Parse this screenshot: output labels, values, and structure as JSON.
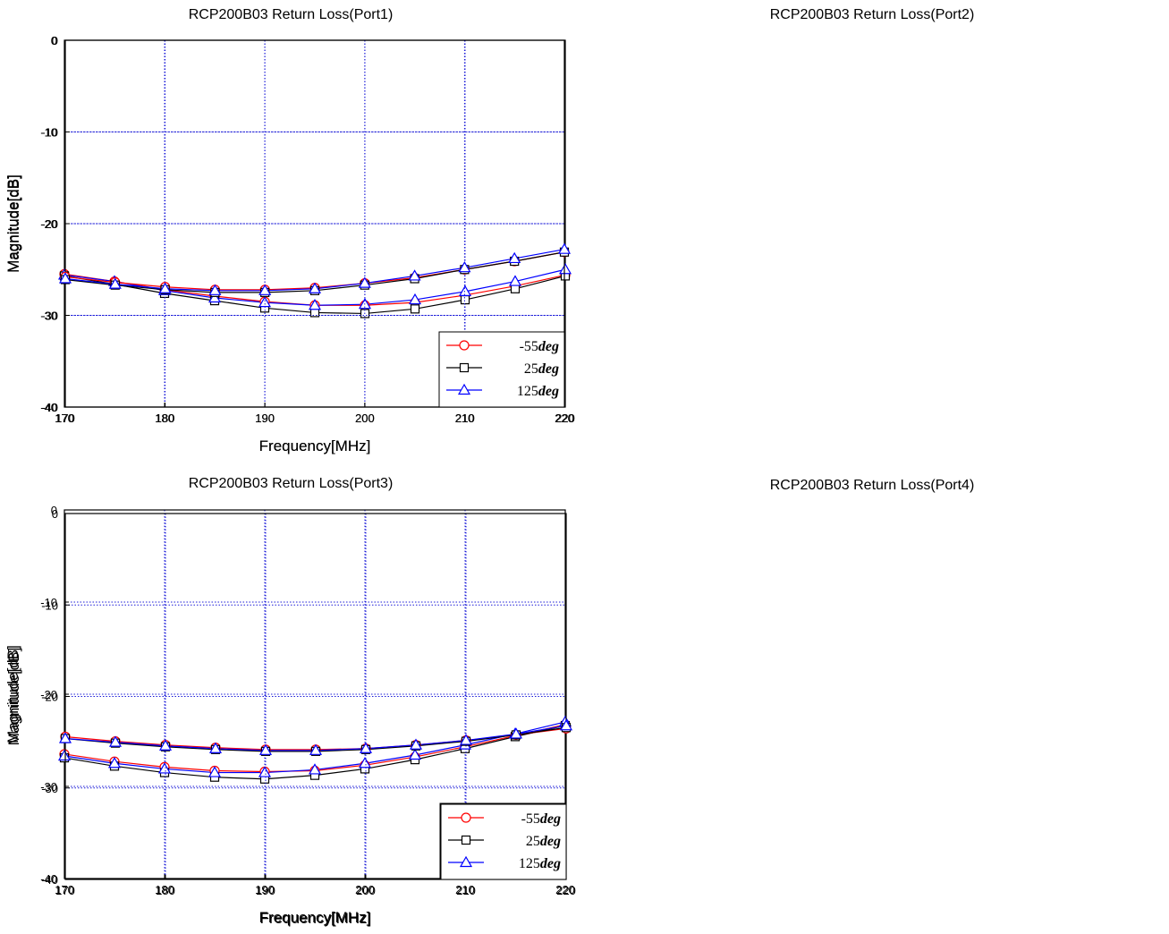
{
  "colors": {
    "grid": "#1c1cd8",
    "series": [
      "#ff0000",
      "#000000",
      "#0000ff"
    ]
  },
  "markers": [
    "circle",
    "square",
    "triangle"
  ],
  "legend_placement": "bottom-right",
  "chart_data": [
    {
      "type": "line",
      "title": "RCP200B03 Return Loss(Port1)",
      "xlabel": "Frequency[MHz]",
      "ylabel": "Magnitude[dB]",
      "xlim": [
        170,
        220
      ],
      "ylim": [
        -40,
        0
      ],
      "xticks": [
        "170",
        "180",
        "190",
        "200",
        "210",
        "220"
      ],
      "yticks": [
        "0",
        "-10",
        "-20",
        "-30",
        "-40"
      ],
      "grid": true,
      "x": [
        170,
        175,
        180,
        185,
        190,
        195,
        200,
        205,
        210,
        215,
        220
      ],
      "series": [
        {
          "name": "-55",
          "unit": "deg",
          "values": [
            -25.5,
            -26.3,
            -27.2,
            -27.9,
            -28.5,
            -28.9,
            -28.9,
            -28.6,
            -27.8,
            -26.8,
            -25.6
          ]
        },
        {
          "name": "25",
          "unit": "deg",
          "values": [
            -25.7,
            -26.6,
            -27.6,
            -28.4,
            -29.2,
            -29.7,
            -29.8,
            -29.3,
            -28.3,
            -27.1,
            -25.7
          ]
        },
        {
          "name": "125",
          "unit": "deg",
          "values": [
            -25.6,
            -26.3,
            -27.3,
            -28.1,
            -28.6,
            -28.9,
            -28.8,
            -28.3,
            -27.4,
            -26.3,
            -25.0
          ]
        }
      ]
    },
    {
      "type": "line",
      "title": "RCP200B03 Return Loss(Port2)",
      "xlabel": "Frequency[MHz]",
      "ylabel": "Magnitude[dB]",
      "xlim": [
        170,
        220
      ],
      "ylim": [
        -40,
        0
      ],
      "xticks": [
        "170",
        "180",
        "190",
        "200",
        "210",
        "220"
      ],
      "yticks": [
        "0",
        "-10",
        "-20",
        "-30",
        "-40"
      ],
      "grid": true,
      "x": [
        170,
        175,
        180,
        185,
        190,
        195,
        200,
        205,
        210,
        215,
        220
      ],
      "series": [
        {
          "name": "-55",
          "unit": "deg",
          "values": [
            -25.8,
            -26.4,
            -26.9,
            -27.2,
            -27.2,
            -27.0,
            -26.5,
            -25.9,
            -25.0,
            -24.1,
            -23.1
          ]
        },
        {
          "name": "25",
          "unit": "deg",
          "values": [
            -26.1,
            -26.7,
            -27.2,
            -27.5,
            -27.5,
            -27.3,
            -26.7,
            -26.0,
            -25.0,
            -24.1,
            -23.1
          ]
        },
        {
          "name": "125",
          "unit": "deg",
          "values": [
            -26.0,
            -26.6,
            -27.1,
            -27.3,
            -27.3,
            -27.1,
            -26.5,
            -25.7,
            -24.8,
            -23.8,
            -22.8
          ]
        }
      ]
    },
    {
      "type": "line",
      "title": "RCP200B03 Return Loss(Port3)",
      "xlabel": "Frequency[MHz]",
      "ylabel": "Magnitude[dB]",
      "xlim": [
        170,
        220
      ],
      "ylim": [
        -40,
        0
      ],
      "xticks": [
        "170",
        "180",
        "190",
        "200",
        "210",
        "220"
      ],
      "yticks": [
        "0",
        "-10",
        "-20",
        "-30",
        "-40"
      ],
      "grid": true,
      "x": [
        170,
        175,
        180,
        185,
        190,
        195,
        200,
        205,
        210,
        215,
        220
      ],
      "series": [
        {
          "name": "-55",
          "unit": "deg",
          "values": [
            -26.5,
            -27.3,
            -27.9,
            -28.3,
            -28.4,
            -28.3,
            -27.7,
            -26.8,
            -25.7,
            -24.5,
            -23.3
          ]
        },
        {
          "name": "25",
          "unit": "deg",
          "values": [
            -26.9,
            -27.8,
            -28.5,
            -29.0,
            -29.2,
            -28.8,
            -28.1,
            -27.1,
            -25.9,
            -24.6,
            -23.4
          ]
        },
        {
          "name": "125",
          "unit": "deg",
          "values": [
            -26.7,
            -27.5,
            -28.1,
            -28.5,
            -28.5,
            -28.2,
            -27.5,
            -26.6,
            -25.5,
            -24.3,
            -23.0
          ]
        }
      ]
    },
    {
      "type": "line",
      "title": "RCP200B03 Return Loss(Port4)",
      "xlabel": "Frequency[MHz]",
      "ylabel": "Magnitude[dB]",
      "xlim": [
        170,
        220
      ],
      "ylim": [
        -40,
        0
      ],
      "xticks": [
        "170",
        "180",
        "190",
        "200",
        "210",
        "220"
      ],
      "yticks": [
        "0",
        "-10",
        "-20",
        "-30",
        "-40"
      ],
      "grid": true,
      "x": [
        170,
        175,
        180,
        185,
        190,
        195,
        200,
        205,
        210,
        215,
        220
      ],
      "series": [
        {
          "name": "-55",
          "unit": "deg",
          "values": [
            -24.4,
            -24.9,
            -25.3,
            -25.6,
            -25.8,
            -25.8,
            -25.7,
            -25.3,
            -24.8,
            -24.2,
            -23.5
          ]
        },
        {
          "name": "25",
          "unit": "deg",
          "values": [
            -24.6,
            -25.1,
            -25.5,
            -25.8,
            -26.0,
            -26.0,
            -25.8,
            -25.4,
            -24.9,
            -24.2,
            -23.4
          ]
        },
        {
          "name": "125",
          "unit": "deg",
          "values": [
            -24.6,
            -25.0,
            -25.4,
            -25.7,
            -25.9,
            -25.9,
            -25.7,
            -25.3,
            -24.8,
            -24.1,
            -23.2
          ]
        }
      ]
    }
  ]
}
